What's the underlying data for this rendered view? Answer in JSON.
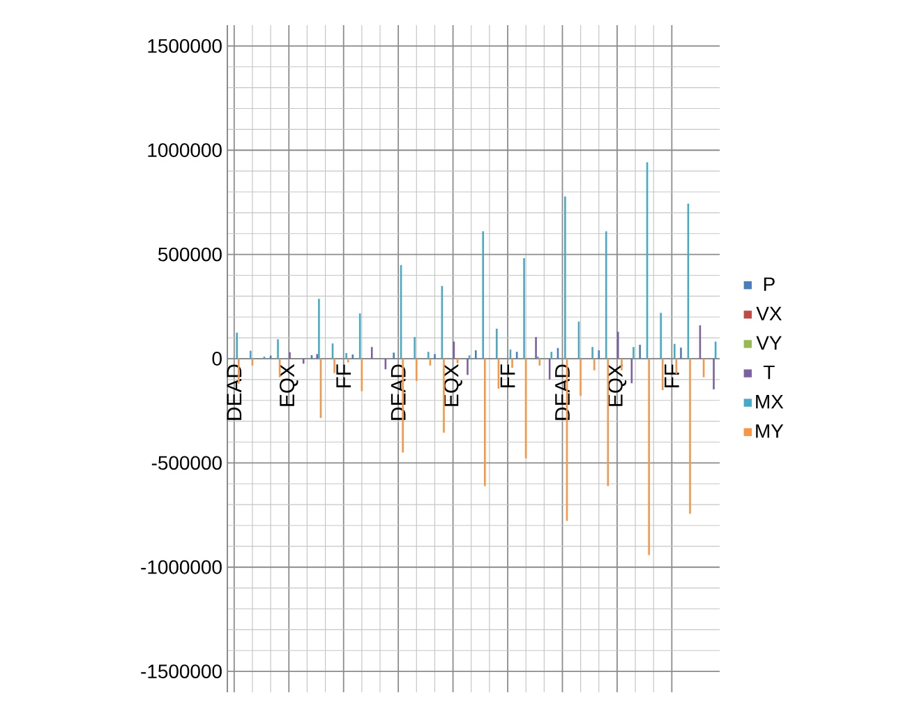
{
  "chart_data": {
    "type": "bar",
    "categories": [
      "DEAD",
      null,
      null,
      null,
      "EQX",
      null,
      null,
      null,
      "FF",
      null,
      null,
      null,
      "DEAD",
      null,
      null,
      null,
      "EQX",
      null,
      null,
      null,
      "FF",
      null,
      null,
      null,
      "DEAD",
      null,
      null,
      null,
      "EQX",
      null,
      null,
      null,
      "FF",
      null,
      null,
      null
    ],
    "series": [
      {
        "name": "P",
        "color": "#4a7ebb",
        "values": [
          0,
          0,
          0,
          15000,
          0,
          0,
          17000,
          0,
          0,
          20000,
          0,
          0,
          29000,
          0,
          0,
          22000,
          0,
          0,
          40000,
          0,
          0,
          33000,
          0,
          0,
          51000,
          0,
          0,
          40000,
          0,
          0,
          67000,
          0,
          0,
          53000,
          0,
          0
        ]
      },
      {
        "name": "VX",
        "color": "#be4b48",
        "values": [
          0,
          0,
          0,
          0,
          0,
          0,
          0,
          0,
          0,
          0,
          0,
          0,
          0,
          0,
          0,
          0,
          0,
          0,
          0,
          0,
          0,
          0,
          0,
          0,
          0,
          0,
          0,
          0,
          0,
          0,
          0,
          0,
          0,
          0,
          0,
          0
        ]
      },
      {
        "name": "VY",
        "color": "#98b954",
        "values": [
          0,
          0,
          0,
          0,
          0,
          0,
          0,
          0,
          0,
          0,
          0,
          0,
          0,
          0,
          0,
          0,
          0,
          0,
          0,
          0,
          0,
          0,
          0,
          0,
          0,
          0,
          0,
          0,
          0,
          0,
          0,
          0,
          0,
          0,
          0,
          0
        ]
      },
      {
        "name": "T",
        "color": "#7d60a0",
        "values": [
          0,
          0,
          0,
          0,
          31000,
          -24000,
          22000,
          0,
          0,
          0,
          56000,
          -51000,
          0,
          0,
          0,
          0,
          82000,
          -78000,
          0,
          0,
          0,
          0,
          104000,
          -100000,
          0,
          0,
          0,
          0,
          129000,
          -118000,
          0,
          0,
          0,
          0,
          160000,
          -147000
        ]
      },
      {
        "name": "MX",
        "color": "#46aac5",
        "values": [
          125000,
          38000,
          10000,
          93000,
          0,
          null,
          287000,
          73000,
          27000,
          217000,
          0,
          0,
          449000,
          104000,
          33000,
          349000,
          0,
          16000,
          611000,
          144000,
          44000,
          482000,
          10000,
          33000,
          778000,
          178000,
          56000,
          611000,
          0,
          56000,
          942000,
          220000,
          71000,
          744000,
          0,
          82000
        ]
      },
      {
        "name": "MY",
        "color": "#f79646",
        "values": [
          -120000,
          -33000,
          null,
          -89000,
          0,
          0,
          -284000,
          -69000,
          -18000,
          -156000,
          0,
          0,
          -450000,
          -107000,
          -33000,
          -355000,
          -22000,
          0,
          -611000,
          -144000,
          -44000,
          -478000,
          -33000,
          0,
          -778000,
          -178000,
          -56000,
          -611000,
          -56000,
          0,
          -942000,
          -151000,
          -73000,
          -744000,
          -89000,
          0
        ]
      }
    ],
    "ylim": [
      -1600000,
      1600000
    ],
    "yticks": [
      -1500000,
      -1000000,
      -500000,
      0,
      500000,
      1000000,
      1500000
    ],
    "grid": true,
    "legend": "right"
  }
}
